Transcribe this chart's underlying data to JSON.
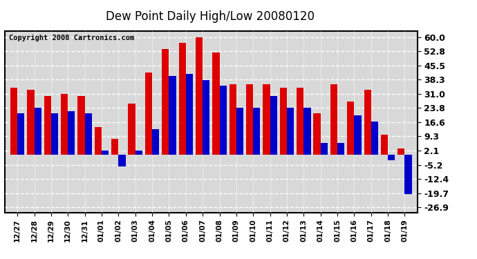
{
  "title": "Dew Point Daily High/Low 20080120",
  "copyright": "Copyright 2008 Cartronics.com",
  "dates": [
    "12/27",
    "12/28",
    "12/29",
    "12/30",
    "12/31",
    "01/01",
    "01/02",
    "01/03",
    "01/04",
    "01/05",
    "01/06",
    "01/07",
    "01/08",
    "01/09",
    "01/10",
    "01/11",
    "01/12",
    "01/13",
    "01/14",
    "01/15",
    "01/16",
    "01/17",
    "01/18",
    "01/19"
  ],
  "highs": [
    34.0,
    33.0,
    30.0,
    31.0,
    30.0,
    14.0,
    8.0,
    26.0,
    42.0,
    54.0,
    57.0,
    60.0,
    52.0,
    36.0,
    36.0,
    36.0,
    34.0,
    34.0,
    21.0,
    36.0,
    27.0,
    33.0,
    10.0,
    3.0
  ],
  "lows": [
    21.0,
    24.0,
    21.0,
    22.0,
    21.0,
    2.0,
    -6.0,
    2.0,
    13.0,
    40.0,
    41.0,
    38.0,
    35.0,
    24.0,
    24.0,
    30.0,
    24.0,
    24.0,
    6.0,
    6.0,
    20.0,
    17.0,
    -3.0,
    -20.0
  ],
  "high_color": "#dd0000",
  "low_color": "#0000cc",
  "bg_color": "#ffffff",
  "plot_bg_color": "#d8d8d8",
  "grid_color": "#ffffff",
  "yticks": [
    -26.9,
    -19.7,
    -12.4,
    -5.2,
    2.1,
    9.3,
    16.6,
    23.8,
    31.0,
    38.3,
    45.5,
    52.8,
    60.0
  ],
  "ylim": [
    -29.5,
    63.0
  ],
  "bar_width": 0.42
}
